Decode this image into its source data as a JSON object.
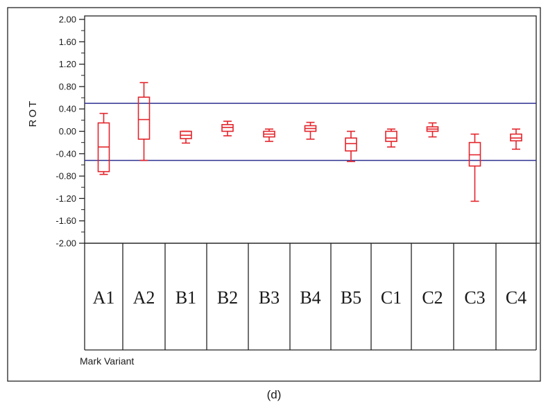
{
  "chart_data": {
    "type": "boxplot",
    "ylabel": "ROT",
    "xlabel": "Mark Variant",
    "caption": "(d)",
    "ylim": [
      -2.0,
      2.0
    ],
    "yticks": [
      "2.00",
      "1.60",
      "1.20",
      "0.80",
      "0.40",
      "0.00",
      "-0.40",
      "-0.80",
      "-1.20",
      "-1.60",
      "-2.00"
    ],
    "reference_lines": [
      0.5,
      -0.52
    ],
    "reference_color": "#2b2f8f",
    "box_color": "#e3242b",
    "categories": [
      "A1",
      "A2",
      "B1",
      "B2",
      "B3",
      "B4",
      "B5",
      "C1",
      "C2",
      "C3",
      "C4"
    ],
    "boxes": [
      {
        "min": -0.77,
        "q1": -0.72,
        "median": -0.28,
        "q3": 0.15,
        "max": 0.32
      },
      {
        "min": -0.52,
        "q1": -0.14,
        "median": 0.21,
        "q3": 0.61,
        "max": 0.87
      },
      {
        "min": -0.21,
        "q1": -0.13,
        "median": -0.07,
        "q3": 0.0,
        "max": 0.0
      },
      {
        "min": -0.08,
        "q1": 0.0,
        "median": 0.07,
        "q3": 0.12,
        "max": 0.18
      },
      {
        "min": -0.18,
        "q1": -0.1,
        "median": -0.05,
        "q3": 0.0,
        "max": 0.04
      },
      {
        "min": -0.14,
        "q1": 0.0,
        "median": 0.05,
        "q3": 0.1,
        "max": 0.16
      },
      {
        "min": -0.54,
        "q1": -0.35,
        "median": -0.22,
        "q3": -0.12,
        "max": 0.0
      },
      {
        "min": -0.28,
        "q1": -0.18,
        "median": -0.12,
        "q3": 0.0,
        "max": 0.04
      },
      {
        "min": -0.1,
        "q1": 0.0,
        "median": 0.04,
        "q3": 0.08,
        "max": 0.15
      },
      {
        "min": -1.25,
        "q1": -0.62,
        "median": -0.42,
        "q3": -0.2,
        "max": -0.05
      },
      {
        "min": -0.32,
        "q1": -0.17,
        "median": -0.12,
        "q3": -0.05,
        "max": 0.04
      }
    ]
  }
}
